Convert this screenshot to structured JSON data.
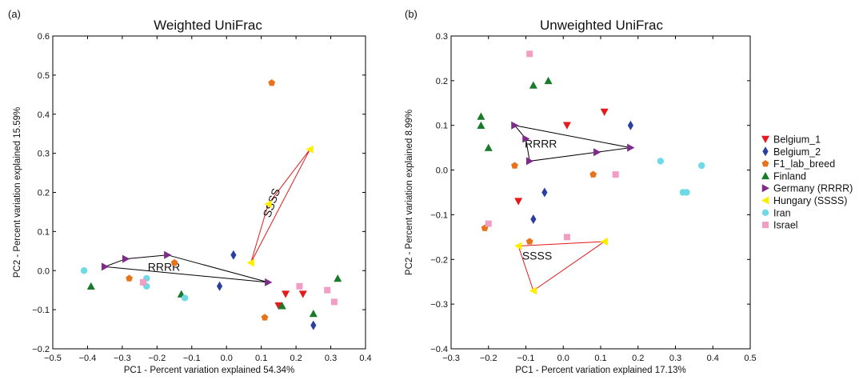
{
  "chart_data": [
    {
      "type": "scatter",
      "panel_label": "(a)",
      "title": "Weighted UniFrac",
      "xlabel": "PC1 - Percent variation explained 54.34%",
      "ylabel": "PC2 - Percent variation explained 15.59%",
      "xlim": [
        -0.5,
        0.4
      ],
      "ylim": [
        -0.2,
        0.6
      ],
      "xticks": [
        -0.5,
        -0.4,
        -0.3,
        -0.2,
        -0.1,
        0.0,
        0.1,
        0.2,
        0.3,
        0.4
      ],
      "yticks": [
        -0.2,
        -0.1,
        0.0,
        0.1,
        0.2,
        0.3,
        0.4,
        0.5,
        0.6
      ],
      "xtick_labels": [
        "−0.5",
        "−0.4",
        "−0.3",
        "−0.2",
        "−0.1",
        "0.0",
        "0.1",
        "0.2",
        "0.3",
        "0.4"
      ],
      "ytick_labels": [
        "−0.2",
        "−0.1",
        "0.0",
        "0.1",
        "0.2",
        "0.3",
        "0.4",
        "0.5",
        "0.6"
      ],
      "series": [
        {
          "name": "Belgium_1",
          "points": [
            [
              0.17,
              -0.06
            ],
            [
              0.22,
              -0.06
            ],
            [
              0.15,
              -0.09
            ]
          ]
        },
        {
          "name": "Belgium_2",
          "points": [
            [
              0.02,
              0.04
            ],
            [
              -0.02,
              -0.04
            ],
            [
              0.25,
              -0.14
            ]
          ]
        },
        {
          "name": "F1_lab_breed",
          "points": [
            [
              0.13,
              0.48
            ],
            [
              -0.28,
              -0.02
            ],
            [
              -0.15,
              0.02
            ],
            [
              0.11,
              -0.12
            ]
          ]
        },
        {
          "name": "Finland",
          "points": [
            [
              -0.39,
              -0.04
            ],
            [
              -0.13,
              -0.06
            ],
            [
              0.16,
              -0.09
            ],
            [
              0.25,
              -0.11
            ],
            [
              0.32,
              -0.02
            ]
          ]
        },
        {
          "name": "Germany (RRRR)",
          "points": [
            [
              -0.35,
              0.01
            ],
            [
              -0.29,
              0.03
            ],
            [
              -0.17,
              0.04
            ],
            [
              0.12,
              -0.03
            ]
          ]
        },
        {
          "name": "Hungary (SSSS)",
          "points": [
            [
              0.07,
              0.02
            ],
            [
              0.12,
              0.17
            ],
            [
              0.24,
              0.31
            ]
          ]
        },
        {
          "name": "Iran",
          "points": [
            [
              -0.41,
              0.0
            ],
            [
              -0.23,
              -0.02
            ],
            [
              -0.23,
              -0.04
            ],
            [
              -0.12,
              -0.07
            ]
          ]
        },
        {
          "name": "Israel",
          "points": [
            [
              -0.24,
              -0.03
            ],
            [
              0.21,
              -0.04
            ],
            [
              0.29,
              -0.05
            ],
            [
              0.31,
              -0.08
            ]
          ]
        }
      ],
      "hulls": [
        {
          "label": "RRRR",
          "series": "Germany (RRRR)",
          "color": "#000000",
          "vertices": [
            [
              -0.35,
              0.01
            ],
            [
              -0.29,
              0.03
            ],
            [
              -0.17,
              0.04
            ],
            [
              0.12,
              -0.03
            ]
          ],
          "label_pos": [
            -0.18,
            0.0
          ]
        },
        {
          "label": "SSSS",
          "series": "Hungary (SSSS)",
          "color": "#e41a1c",
          "vertices": [
            [
              0.07,
              0.02
            ],
            [
              0.12,
              0.17
            ],
            [
              0.24,
              0.31
            ]
          ],
          "label_pos": [
            0.14,
            0.17
          ],
          "label_rotation": -70
        }
      ]
    },
    {
      "type": "scatter",
      "panel_label": "(b)",
      "title": "Unweighted UniFrac",
      "xlabel": "PC1 - Percent variation explained 17.13%",
      "ylabel": "PC2 - Percent variation explained 8.99%",
      "xlim": [
        -0.3,
        0.5
      ],
      "ylim": [
        -0.4,
        0.3
      ],
      "xticks": [
        -0.3,
        -0.2,
        -0.1,
        0.0,
        0.1,
        0.2,
        0.3,
        0.4,
        0.5
      ],
      "yticks": [
        -0.4,
        -0.3,
        -0.2,
        -0.1,
        0.0,
        0.1,
        0.2,
        0.3
      ],
      "xtick_labels": [
        "−0.3",
        "−0.2",
        "−0.1",
        "0.0",
        "0.1",
        "0.2",
        "0.3",
        "0.4",
        "0.5"
      ],
      "ytick_labels": [
        "−0.4",
        "−0.3",
        "−0.2",
        "−0.1",
        "0.0",
        "0.1",
        "0.2",
        "0.3"
      ],
      "series": [
        {
          "name": "Belgium_1",
          "points": [
            [
              0.11,
              0.13
            ],
            [
              0.01,
              0.1
            ],
            [
              -0.12,
              -0.07
            ]
          ]
        },
        {
          "name": "Belgium_2",
          "points": [
            [
              0.18,
              0.1
            ],
            [
              -0.05,
              -0.05
            ],
            [
              -0.08,
              -0.11
            ]
          ]
        },
        {
          "name": "F1_lab_breed",
          "points": [
            [
              -0.13,
              0.01
            ],
            [
              0.08,
              -0.01
            ],
            [
              -0.21,
              -0.13
            ],
            [
              -0.09,
              -0.16
            ]
          ]
        },
        {
          "name": "Finland",
          "points": [
            [
              -0.08,
              0.19
            ],
            [
              -0.04,
              0.2
            ],
            [
              -0.22,
              0.12
            ],
            [
              -0.22,
              0.1
            ],
            [
              -0.2,
              0.05
            ]
          ]
        },
        {
          "name": "Germany (RRRR)",
          "points": [
            [
              -0.13,
              0.1
            ],
            [
              -0.1,
              0.07
            ],
            [
              -0.09,
              0.02
            ],
            [
              0.09,
              0.04
            ],
            [
              0.18,
              0.05
            ]
          ]
        },
        {
          "name": "Hungary (SSSS)",
          "points": [
            [
              -0.12,
              -0.17
            ],
            [
              0.11,
              -0.16
            ],
            [
              -0.08,
              -0.27
            ]
          ]
        },
        {
          "name": "Iran",
          "points": [
            [
              0.26,
              0.02
            ],
            [
              0.37,
              0.01
            ],
            [
              0.32,
              -0.05
            ],
            [
              0.33,
              -0.05
            ]
          ]
        },
        {
          "name": "Israel",
          "points": [
            [
              -0.09,
              0.26
            ],
            [
              0.14,
              -0.01
            ],
            [
              -0.2,
              -0.12
            ],
            [
              0.01,
              -0.15
            ]
          ]
        }
      ],
      "hulls": [
        {
          "label": "RRRR",
          "series": "Germany (RRRR)",
          "color": "#000000",
          "vertices": [
            [
              -0.13,
              0.1
            ],
            [
              0.18,
              0.05
            ],
            [
              0.09,
              0.04
            ],
            [
              -0.09,
              0.02
            ],
            [
              -0.1,
              0.07
            ]
          ],
          "label_pos": [
            -0.06,
            0.05
          ]
        },
        {
          "label": "SSSS",
          "series": "Hungary (SSSS)",
          "color": "#e41a1c",
          "vertices": [
            [
              -0.12,
              -0.17
            ],
            [
              0.11,
              -0.16
            ],
            [
              -0.08,
              -0.27
            ]
          ],
          "label_pos": [
            -0.07,
            -0.2
          ]
        }
      ]
    }
  ],
  "legend": {
    "position": "right",
    "items": [
      {
        "label": "Belgium_1",
        "color": "#e41a1c",
        "marker": "triangle-down"
      },
      {
        "label": "Belgium_2",
        "color": "#2a3f9e",
        "marker": "diamond"
      },
      {
        "label": "F1_lab_breed",
        "color": "#e8731d",
        "marker": "pentagon"
      },
      {
        "label": "Finland",
        "color": "#1a7a2c",
        "marker": "triangle-up"
      },
      {
        "label": "Germany (RRRR)",
        "color": "#7f2b8a",
        "marker": "triangle-right"
      },
      {
        "label": "Hungary (SSSS)",
        "color": "#ffee00",
        "marker": "triangle-left"
      },
      {
        "label": "Iran",
        "color": "#6fd9e6",
        "marker": "circle"
      },
      {
        "label": "Israel",
        "color": "#f29ec4",
        "marker": "square"
      }
    ]
  }
}
